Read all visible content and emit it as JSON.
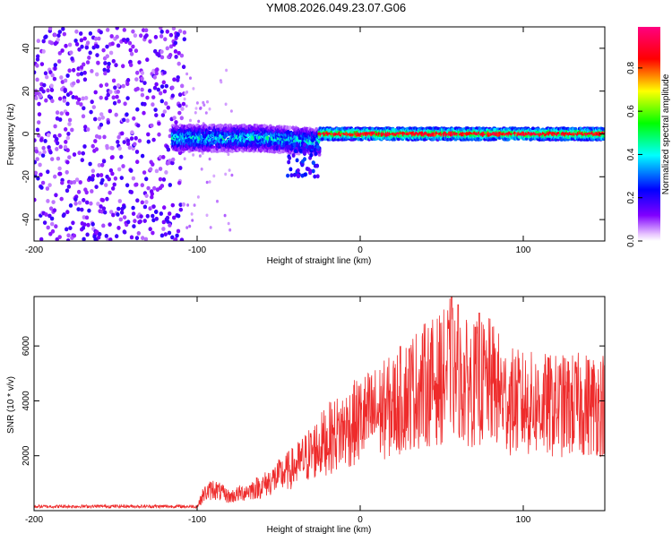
{
  "title": "YM08.2026.049.23.07.G06",
  "colors": {
    "snr_line": "#ee2b2b",
    "axis": "#000000",
    "background": "#ffffff"
  },
  "chart_data": [
    {
      "type": "heatmap",
      "name": "spectrogram",
      "xlabel": "Height of straight line (km)",
      "ylabel": "Frequency (Hz)",
      "xlim": [
        -200,
        150
      ],
      "ylim": [
        -50,
        50
      ],
      "xticks": [
        -200,
        -100,
        0,
        100
      ],
      "yticks": [
        -40,
        -20,
        0,
        20,
        40
      ],
      "colorbar": {
        "label": "Normalized spectral amplitude",
        "range": [
          0.0,
          0.99
        ],
        "ticks": [
          "0.0",
          "0.2",
          "0.4",
          "0.6",
          "0.8"
        ],
        "tick_values": [
          0.0,
          0.2,
          0.4,
          0.6,
          0.8
        ],
        "colormap": "rainbow (purple-blue-cyan-green-yellow-red-magenta)"
      },
      "regions": [
        {
          "x_range": [
            -200,
            -108
          ],
          "freq_range": [
            -50,
            50
          ],
          "amplitude": "low 0.0-0.2 scattered noise"
        },
        {
          "x_range": [
            -108,
            -25
          ],
          "freq_center": -2,
          "freq_halfwidth": 5,
          "amplitude": "0.2-0.5 band with descending tail"
        },
        {
          "x_range": [
            -25,
            150
          ],
          "freq_center": 0,
          "freq_halfwidth": 2,
          "amplitude": "0.5-0.99 strong carrier"
        }
      ]
    },
    {
      "type": "line",
      "name": "snr",
      "xlabel": "Height of straight line (km)",
      "ylabel": "SNR (10 * v/v)",
      "xlim": [
        -200,
        150
      ],
      "ylim": [
        0,
        7800
      ],
      "xticks": [
        -200,
        -100,
        0,
        100
      ],
      "yticks": [
        2000,
        4000,
        6000
      ],
      "series": [
        {
          "name": "SNR",
          "color": "#ee2b2b",
          "envelope_x": [
            -200,
            -150,
            -100,
            -96,
            -90,
            -80,
            -60,
            -40,
            -20,
            0,
            20,
            30,
            40,
            50,
            55,
            60,
            70,
            80,
            90,
            100,
            120,
            150
          ],
          "envelope_y": [
            150,
            160,
            150,
            600,
            800,
            500,
            900,
            1600,
            2600,
            3300,
            3800,
            4300,
            4600,
            4800,
            5200,
            4700,
            4600,
            4700,
            4000,
            3900,
            3800,
            3900
          ],
          "peak_x": [
            56,
            60,
            73
          ],
          "peak_y": [
            7800,
            7500,
            7200
          ]
        }
      ]
    }
  ]
}
